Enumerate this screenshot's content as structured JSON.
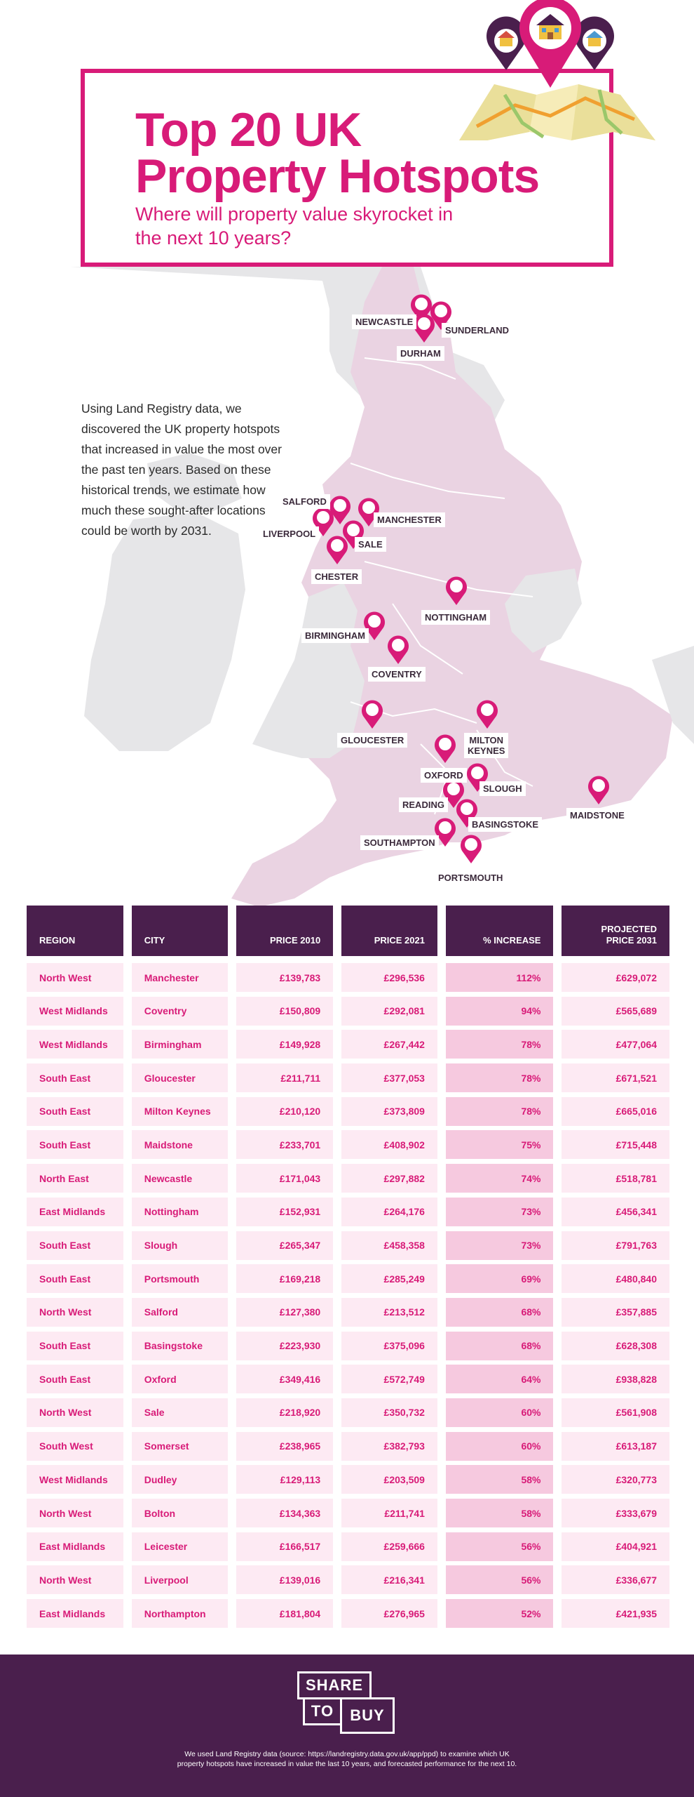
{
  "header": {
    "title": "Top 20 UK\nProperty Hotspots",
    "subtitle": "Where will property value skyrocket in\nthe next 10 years?"
  },
  "intro_text": "Using Land Registry data, we\ndiscovered the UK property hotspots\n that increased in value the most over\n the past ten years. Based on these\nhistorical trends, we estimate how\nmuch these sought-after locations\ncould be worth by 2031.",
  "map": {
    "labels": {
      "newcastle": "NEWCASTLE",
      "sunderland": "SUNDERLAND",
      "durham": "DURHAM",
      "salford": "SALFORD",
      "manchester": "MANCHESTER",
      "liverpool": "LIVERPOOL",
      "sale": "SALE",
      "chester": "CHESTER",
      "nottingham": "NOTTINGHAM",
      "birmingham": "BIRMINGHAM",
      "coventry": "COVENTRY",
      "gloucester": "GLOUCESTER",
      "milton_keynes": "MILTON\nKEYNES",
      "oxford": "OXFORD",
      "slough": "SLOUGH",
      "reading": "READING",
      "basingstoke": "BASINGSTOKE",
      "maidstone": "MAIDSTONE",
      "southampton": "SOUTHAMPTON",
      "portsmouth": "PORTSMOUTH"
    }
  },
  "table": {
    "headers": {
      "region": "REGION",
      "city": "CITY",
      "price2010": "PRICE 2010",
      "price2021": "PRICE 2021",
      "increase": "% INCREASE",
      "projected": "PROJECTED\nPRICE 2031"
    },
    "rows": [
      {
        "region": "North West",
        "city": "Manchester",
        "p2010": "£139,783",
        "p2021": "£296,536",
        "inc": "112%",
        "p2031": "£629,072"
      },
      {
        "region": "West Midlands",
        "city": "Coventry",
        "p2010": "£150,809",
        "p2021": "£292,081",
        "inc": "94%",
        "p2031": "£565,689"
      },
      {
        "region": "West Midlands",
        "city": "Birmingham",
        "p2010": "£149,928",
        "p2021": "£267,442",
        "inc": "78%",
        "p2031": "£477,064"
      },
      {
        "region": "South East",
        "city": "Gloucester",
        "p2010": "£211,711",
        "p2021": "£377,053",
        "inc": "78%",
        "p2031": "£671,521"
      },
      {
        "region": "South East",
        "city": "Milton Keynes",
        "p2010": "£210,120",
        "p2021": "£373,809",
        "inc": "78%",
        "p2031": "£665,016"
      },
      {
        "region": "South East",
        "city": "Maidstone",
        "p2010": "£233,701",
        "p2021": "£408,902",
        "inc": "75%",
        "p2031": "£715,448"
      },
      {
        "region": "North East",
        "city": "Newcastle",
        "p2010": "£171,043",
        "p2021": "£297,882",
        "inc": "74%",
        "p2031": "£518,781"
      },
      {
        "region": "East Midlands",
        "city": "Nottingham",
        "p2010": "£152,931",
        "p2021": "£264,176",
        "inc": "73%",
        "p2031": "£456,341"
      },
      {
        "region": "South East",
        "city": "Slough",
        "p2010": "£265,347",
        "p2021": "£458,358",
        "inc": "73%",
        "p2031": "£791,763"
      },
      {
        "region": "South East",
        "city": "Portsmouth",
        "p2010": "£169,218",
        "p2021": "£285,249",
        "inc": "69%",
        "p2031": "£480,840"
      },
      {
        "region": "North West",
        "city": "Salford",
        "p2010": "£127,380",
        "p2021": "£213,512",
        "inc": "68%",
        "p2031": "£357,885"
      },
      {
        "region": "South East",
        "city": "Basingstoke",
        "p2010": "£223,930",
        "p2021": "£375,096",
        "inc": "68%",
        "p2031": "£628,308"
      },
      {
        "region": "South East",
        "city": "Oxford",
        "p2010": "£349,416",
        "p2021": "£572,749",
        "inc": "64%",
        "p2031": "£938,828"
      },
      {
        "region": "North West",
        "city": "Sale",
        "p2010": "£218,920",
        "p2021": "£350,732",
        "inc": "60%",
        "p2031": "£561,908"
      },
      {
        "region": "South West",
        "city": "Somerset",
        "p2010": "£238,965",
        "p2021": "£382,793",
        "inc": "60%",
        "p2031": "£613,187"
      },
      {
        "region": "West Midlands",
        "city": "Dudley",
        "p2010": "£129,113",
        "p2021": "£203,509",
        "inc": "58%",
        "p2031": "£320,773"
      },
      {
        "region": "North West",
        "city": "Bolton",
        "p2010": "£134,363",
        "p2021": "£211,741",
        "inc": "58%",
        "p2031": "£333,679"
      },
      {
        "region": "East Midlands",
        "city": "Leicester",
        "p2010": "£166,517",
        "p2021": "£259,666",
        "inc": "56%",
        "p2031": "£404,921"
      },
      {
        "region": "North West",
        "city": "Liverpool",
        "p2010": "£139,016",
        "p2021": "£216,341",
        "inc": "56%",
        "p2031": "£336,677"
      },
      {
        "region": "East Midlands",
        "city": "Northampton",
        "p2010": "£181,804",
        "p2021": "£276,965",
        "inc": "52%",
        "p2031": "£421,935"
      }
    ]
  },
  "footer": {
    "logo_line1": "SHARE",
    "logo_line2": "TO",
    "logo_line3": "BUY",
    "note": "We used Land Registry data (source: https://landregistry.data.gov.uk/app/ppd) to examine which UK property hotspots have increased in value the last 10 years, and forecasted performance for the next 10."
  },
  "colors": {
    "accent": "#d81b78",
    "dark_purple": "#4a1f4d",
    "map_grey": "#e6e6e8",
    "map_pink": "#ead3e2",
    "cell_bg": "#fdeaf3",
    "cell_bg_increase": "#f6c9df"
  }
}
